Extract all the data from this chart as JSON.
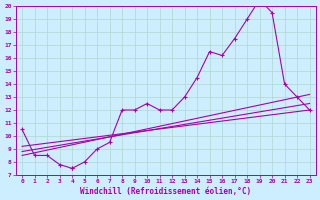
{
  "xlabel": "Windchill (Refroidissement éolien,°C)",
  "background_color": "#cceeff",
  "grid_color": "#aaddcc",
  "line_color": "#aa00aa",
  "xlim": [
    -0.5,
    23.5
  ],
  "ylim": [
    7,
    20
  ],
  "xticks": [
    0,
    1,
    2,
    3,
    4,
    5,
    6,
    7,
    8,
    9,
    10,
    11,
    12,
    13,
    14,
    15,
    16,
    17,
    18,
    19,
    20,
    21,
    22,
    23
  ],
  "yticks": [
    7,
    8,
    9,
    10,
    11,
    12,
    13,
    14,
    15,
    16,
    17,
    18,
    19,
    20
  ],
  "main_x": [
    0,
    1,
    2,
    3,
    4,
    4,
    5,
    6,
    7,
    8,
    9,
    10,
    11,
    12,
    13,
    14,
    15,
    16,
    17,
    18,
    19,
    20,
    21,
    22,
    23
  ],
  "main_y": [
    10.5,
    8.5,
    8.5,
    7.8,
    7.5,
    7.5,
    8.0,
    9.0,
    9.5,
    12.0,
    12.0,
    12.5,
    12.0,
    12.0,
    13.0,
    14.5,
    16.5,
    16.2,
    17.5,
    19.0,
    20.5,
    19.5,
    14.0,
    13.0,
    12.0
  ],
  "line1_x": [
    0,
    23
  ],
  "line1_y": [
    8.5,
    13.2
  ],
  "line2_x": [
    0,
    23
  ],
  "line2_y": [
    8.8,
    12.5
  ],
  "line3_x": [
    0,
    23
  ],
  "line3_y": [
    9.2,
    12.0
  ]
}
